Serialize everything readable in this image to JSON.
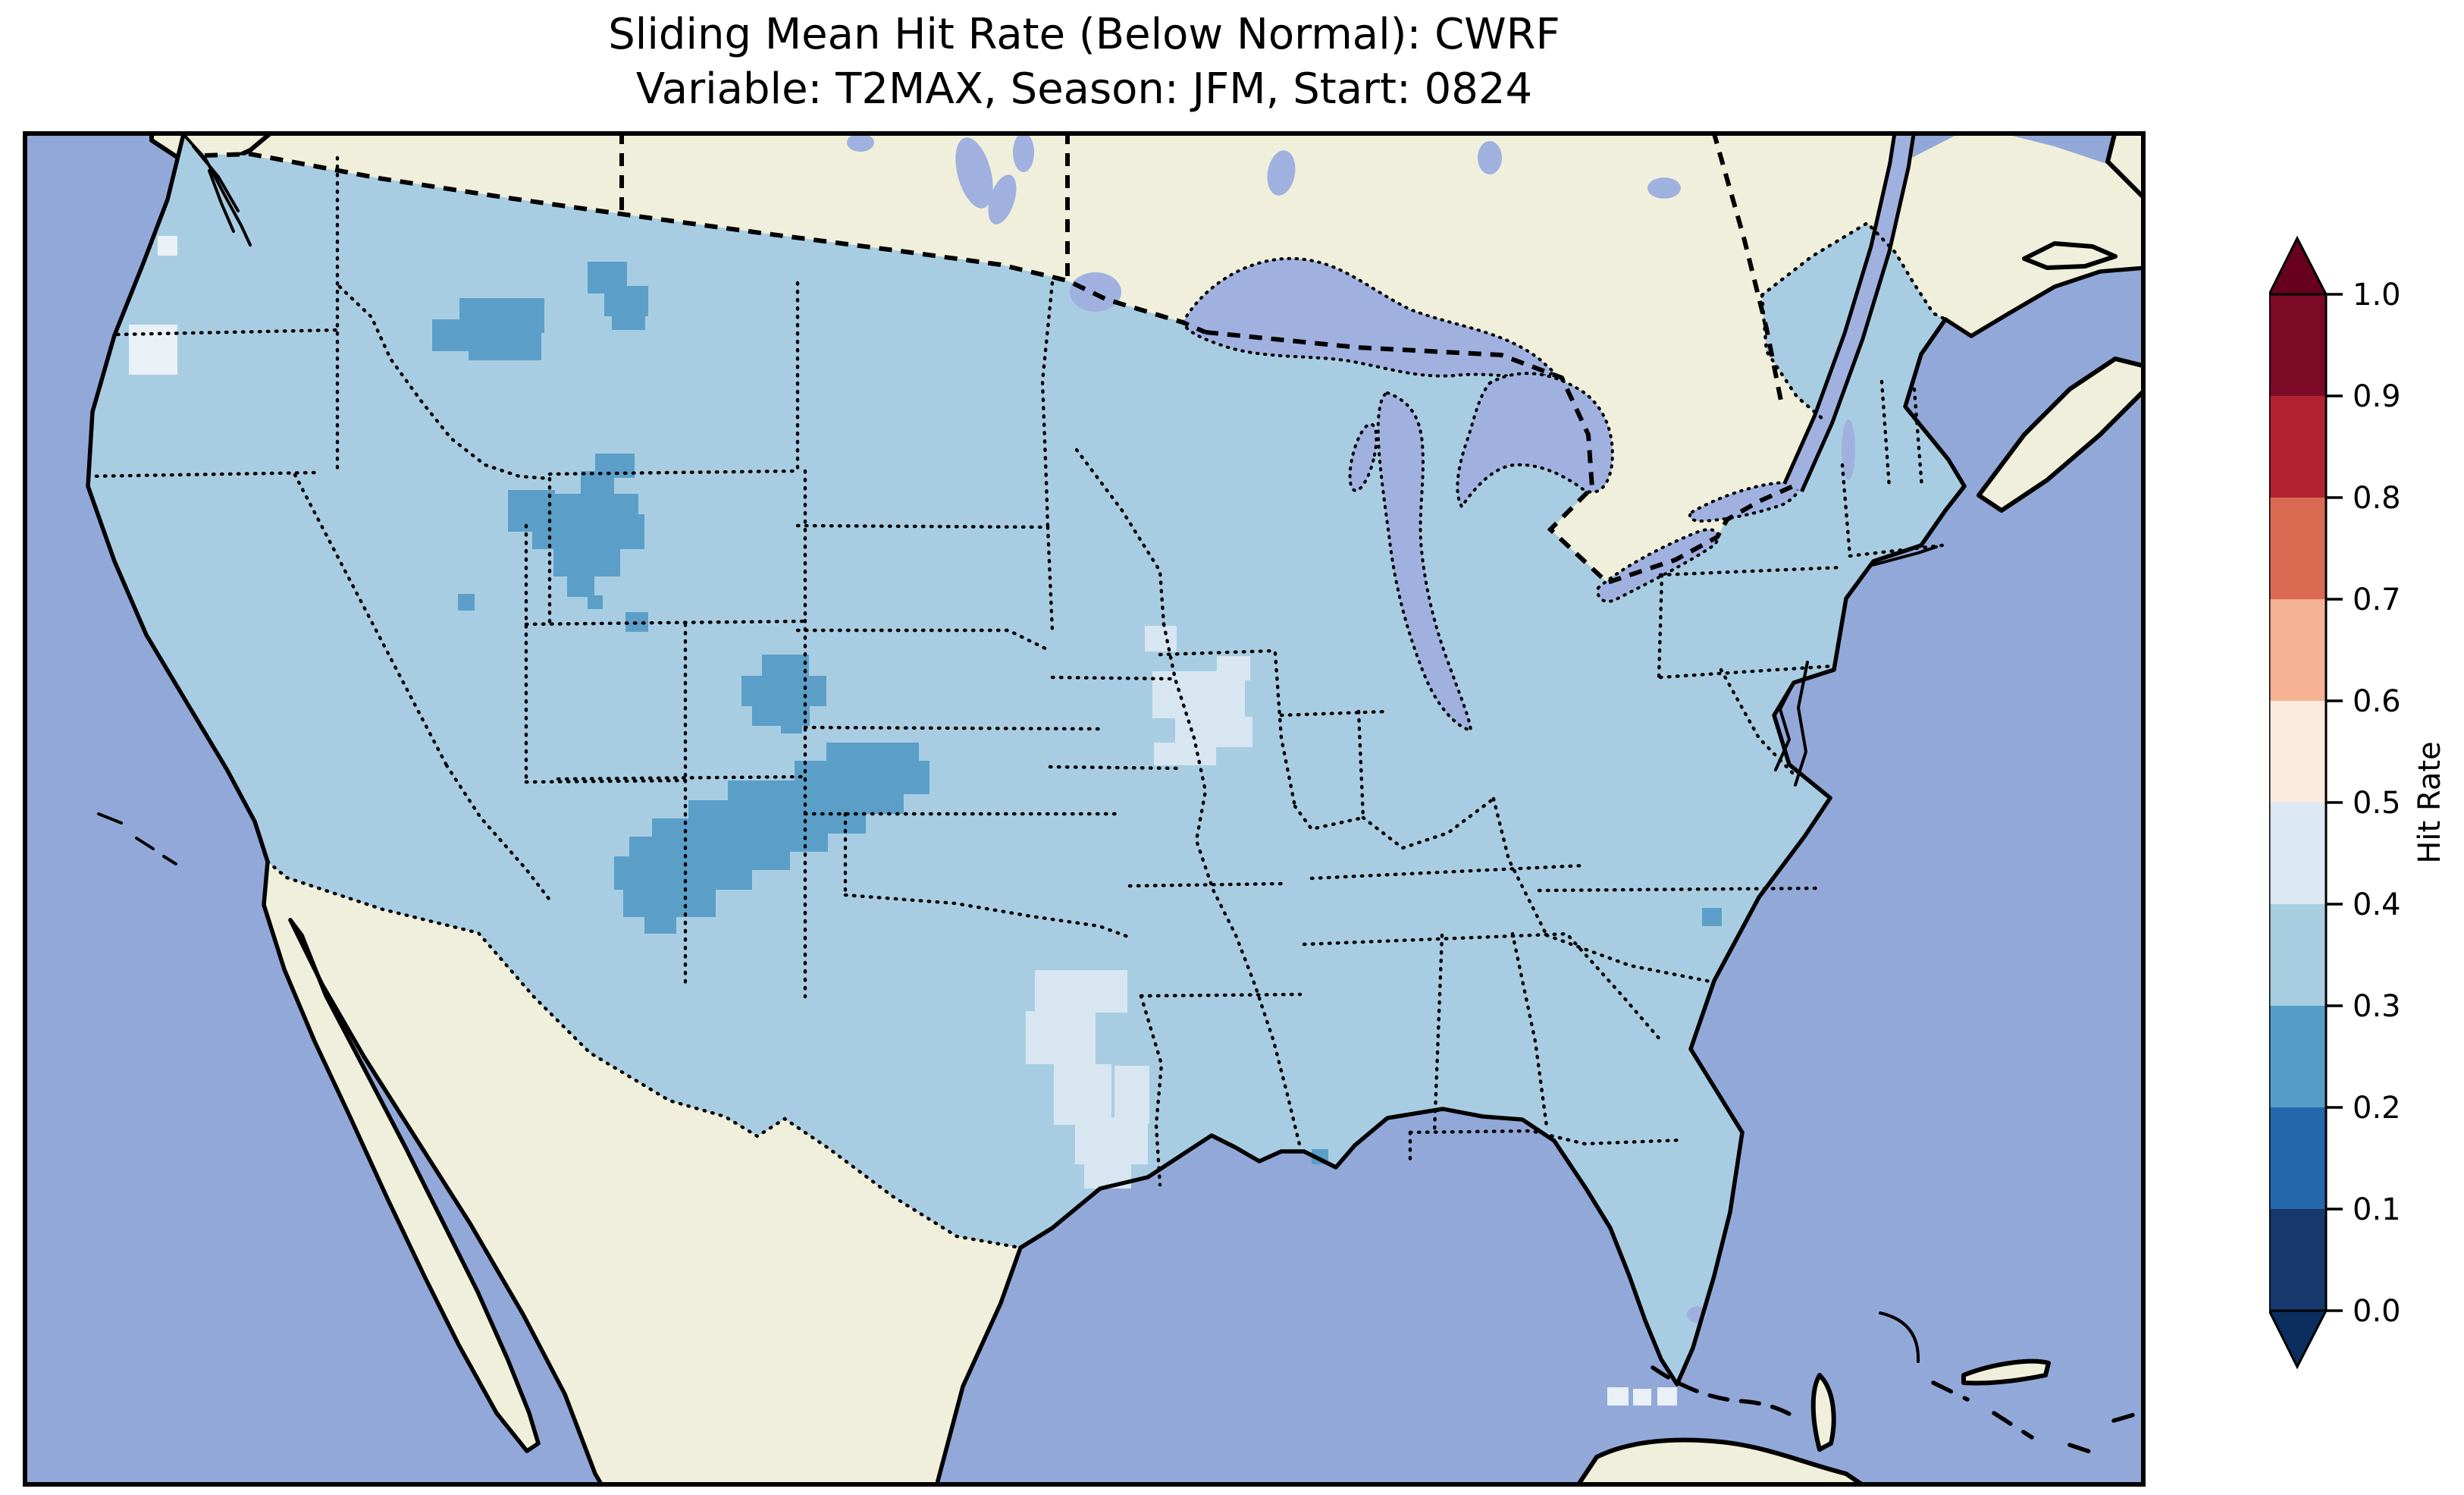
{
  "title": {
    "line1": "Sliding Mean Hit Rate (Below Normal): CWRF",
    "line2": "Variable: T2MAX, Season: JFM, Start: 0824"
  },
  "colorbar": {
    "label": "Hit Rate",
    "ticks": [
      "1.0",
      "0.9",
      "0.8",
      "0.7",
      "0.6",
      "0.5",
      "0.4",
      "0.3",
      "0.2",
      "0.1",
      "0.0"
    ],
    "over_arrow_color": "#67001f",
    "under_arrow_color": "#0b2e5e",
    "bins_top_to_bottom": [
      {
        "range": "0.9–1.0",
        "color": "#7c0a26"
      },
      {
        "range": "0.8–0.9",
        "color": "#b42130"
      },
      {
        "range": "0.7–0.8",
        "color": "#da6a52"
      },
      {
        "range": "0.6–0.7",
        "color": "#f6b294"
      },
      {
        "range": "0.5–0.6",
        "color": "#fbeade"
      },
      {
        "range": "0.4–0.5",
        "color": "#dce9f2"
      },
      {
        "range": "0.3–0.4",
        "color": "#a9cee2"
      },
      {
        "range": "0.2–0.3",
        "color": "#549dc8"
      },
      {
        "range": "0.1–0.2",
        "color": "#2467ab"
      },
      {
        "range": "0.0–0.1",
        "color": "#16386d"
      }
    ]
  },
  "colors": {
    "background": "#ffffff",
    "ocean": "#92a8d8",
    "lakes": "#a0b1e0",
    "land": "#f0efdb",
    "us_base_fill": "#a8cde2",
    "coastline": "#000000",
    "frame": "#000000"
  },
  "chart_data": {
    "type": "heatmap",
    "title": "Sliding Mean Hit Rate (Below Normal): CWRF",
    "subtitle": "Variable: T2MAX, Season: JFM, Start: 0824",
    "model": "CWRF",
    "variable": "T2MAX",
    "season": "JFM",
    "start": "0824",
    "colorbar_label": "Hit Rate",
    "value_range": [
      0.0,
      1.0
    ],
    "bin_width": 0.1,
    "colormap": "RdBu_r (discrete, extend both)",
    "base_value_bin": "0.3–0.4 over nearly all of CONUS",
    "regions": [
      {
        "area": "Most of the continental US",
        "hit_rate": "0.3–0.4"
      },
      {
        "area": "North-central Montana, northeast Montana, central Wyoming / Bighorn area, WY–SD–NE corner, large Colorado–New Mexico band, scattered single cells (Utah, NE Colorado, coastal Carolinas, SE Louisiana)",
        "hit_rate": "0.2–0.3"
      },
      {
        "area": "East Texas along Sabine valley down to the Gulf, Iowa–Missouri–Illinois junction along the Mississippi",
        "hit_rate": "0.4–0.5"
      },
      {
        "area": "Oregon coast patch, Florida Bay / Keys cells",
        "hit_rate": "0.5–0.6"
      }
    ],
    "patch_groups": [
      {
        "bin": "0.2–0.3",
        "color": "#5b9fc9",
        "rects": [
          [
            540,
            248,
            78,
            42
          ],
          [
            576,
            220,
            112,
            46
          ],
          [
            588,
            262,
            96,
            40
          ],
          [
            745,
            172,
            52,
            42
          ],
          [
            767,
            204,
            58,
            40
          ],
          [
            777,
            234,
            44,
            28
          ],
          [
            755,
            425,
            52,
            32
          ],
          [
            736,
            448,
            44,
            52
          ],
          [
            700,
            478,
            112,
            58
          ],
          [
            672,
            505,
            148,
            46
          ],
          [
            700,
            549,
            88,
            38
          ],
          [
            718,
            586,
            36,
            28
          ],
          [
            745,
            612,
            20,
            18
          ],
          [
            640,
            473,
            62,
            55
          ],
          [
            975,
            690,
            62,
            36
          ],
          [
            948,
            718,
            112,
            40
          ],
          [
            962,
            752,
            76,
            32
          ],
          [
            1060,
            806,
            122,
            42
          ],
          [
            1018,
            830,
            178,
            44
          ],
          [
            930,
            856,
            232,
            44
          ],
          [
            878,
            882,
            234,
            44
          ],
          [
            830,
            906,
            232,
            44
          ],
          [
            800,
            930,
            212,
            44
          ],
          [
            780,
            956,
            182,
            44
          ],
          [
            792,
            1000,
            122,
            36
          ],
          [
            820,
            1030,
            42,
            28
          ],
          [
            1000,
            768,
            28,
            26
          ],
          [
            574,
            610,
            22,
            22
          ],
          [
            795,
            634,
            30,
            26
          ],
          [
            2215,
            1024,
            26,
            24
          ],
          [
            1700,
            1342,
            22,
            20
          ]
        ]
      },
      {
        "bin": "0.4–0.5",
        "color": "#d7e6f1",
        "rects": [
          [
            1335,
            1106,
            122,
            56
          ],
          [
            1323,
            1160,
            92,
            70
          ],
          [
            1360,
            1230,
            76,
            80
          ],
          [
            1388,
            1300,
            96,
            62
          ],
          [
            1400,
            1356,
            62,
            38
          ],
          [
            1440,
            1232,
            46,
            76
          ],
          [
            1480,
            652,
            42,
            34
          ],
          [
            1490,
            712,
            122,
            62
          ],
          [
            1575,
            692,
            44,
            32
          ],
          [
            1520,
            772,
            102,
            40
          ],
          [
            1492,
            806,
            82,
            30
          ]
        ]
      },
      {
        "bin": "0.5–0.6",
        "color": "#e9f0f6",
        "rects": [
          [
            140,
            255,
            64,
            66
          ],
          [
            178,
            138,
            26,
            26
          ],
          [
            2090,
            1656,
            28,
            24
          ],
          [
            2124,
            1658,
            24,
            22
          ],
          [
            2156,
            1656,
            26,
            24
          ]
        ]
      }
    ]
  }
}
